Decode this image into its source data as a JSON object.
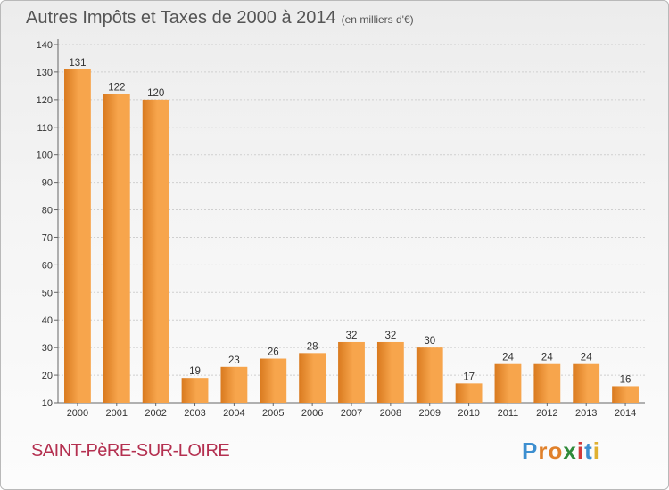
{
  "title": "Autres Impôts et Taxes de 2000 à 2014",
  "subtitle": "(en milliers d'€)",
  "commune": "SAINT-PèRE-SUR-LOIRE",
  "logo": {
    "text": "Proxiti",
    "letters": [
      "P",
      "r",
      "o",
      "x",
      "i",
      "t",
      "i"
    ],
    "colors": [
      "#3d8fd0",
      "#e0802a",
      "#e0802a",
      "#2f8a3a",
      "#d23a3a",
      "#3d8fd0",
      "#e0b030"
    ]
  },
  "colors": {
    "bar_light": "#f7a54c",
    "bar_dark": "#d97a1f",
    "grid": "#cfcfcf",
    "text": "#333333"
  },
  "chart_data": {
    "type": "bar",
    "title": "Autres Impôts et Taxes de 2000 à 2014",
    "subtitle": "(en milliers d'€)",
    "categories": [
      "2000",
      "2001",
      "2002",
      "2003",
      "2004",
      "2005",
      "2006",
      "2007",
      "2008",
      "2009",
      "2010",
      "2011",
      "2012",
      "2013",
      "2014"
    ],
    "values": [
      131,
      122,
      120,
      19,
      23,
      26,
      28,
      32,
      32,
      30,
      17,
      24,
      24,
      24,
      16
    ],
    "ylim": [
      10,
      140
    ],
    "yticks": [
      10,
      20,
      30,
      40,
      50,
      60,
      70,
      80,
      90,
      100,
      110,
      120,
      130,
      140
    ],
    "xlabel": "",
    "ylabel": "",
    "grid": true,
    "data_labels": true
  }
}
